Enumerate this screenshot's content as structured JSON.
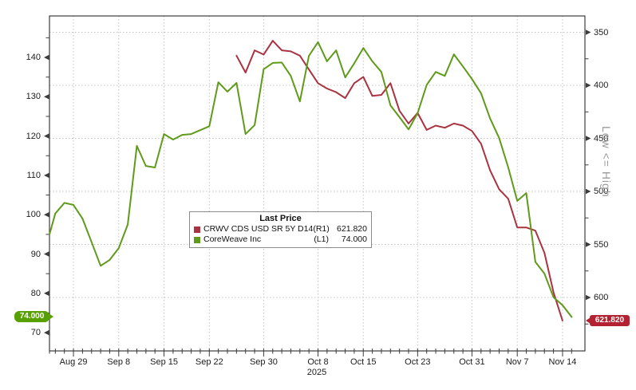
{
  "chart_data": {
    "type": "line",
    "year_label": "2025",
    "legend": {
      "title": "Last Price",
      "entries": [
        {
          "label": "CRWV CDS USD SR 5Y D14",
          "axis_tag": "(R1)",
          "value": "621.820",
          "color": "#a93340"
        },
        {
          "label": "CoreWeave Inc",
          "axis_tag": "(L1)",
          "value": "74.000",
          "color": "#5f9a1b"
        }
      ]
    },
    "x_axis": {
      "tick_labels": [
        "Aug 29",
        "Sep 8",
        "Sep 15",
        "Sep 22",
        "Sep 30",
        "Oct 8",
        "Oct 15",
        "Oct 23",
        "Oct 31",
        "Nov 7",
        "Nov 14"
      ],
      "tick_days": [
        3,
        8,
        13,
        18,
        24,
        30,
        35,
        41,
        47,
        52,
        57
      ],
      "total_days": 59
    },
    "left_axis": {
      "ticks": [
        140,
        130,
        120,
        110,
        100,
        90,
        80,
        70
      ],
      "minor_ticks": [
        145,
        135,
        125,
        115,
        105,
        95,
        85,
        75
      ],
      "badge": "74.000",
      "badge_color": "#58a000"
    },
    "right_axis": {
      "ticks": [
        350,
        400,
        450,
        500,
        550,
        600
      ],
      "minor_ticks": [
        375,
        425,
        475,
        525,
        575,
        625
      ],
      "label": "Low <= High",
      "inverted": true,
      "badge": "621.820",
      "badge_color": "#b42231"
    },
    "series": [
      {
        "name": "CoreWeave Inc (L1)",
        "axis": "left",
        "color": "#5f9a1b",
        "days": [
          0,
          1,
          2,
          3,
          4,
          5,
          6,
          7,
          8,
          9,
          10,
          11,
          12,
          13,
          14,
          15,
          16,
          17,
          18,
          19,
          20,
          21,
          22,
          23,
          24,
          25,
          26,
          27,
          28,
          29,
          30,
          31,
          32,
          33,
          34,
          35,
          36,
          37,
          38,
          39,
          40,
          41,
          42,
          43,
          44,
          45,
          46,
          47,
          48,
          49,
          50,
          51,
          52,
          53,
          54,
          55,
          56,
          57,
          58
        ],
        "values": [
          95,
          100.3,
          103,
          102.5,
          99,
          93,
          87,
          88.5,
          91.5,
          97.5,
          117.5,
          112.4,
          112,
          120.5,
          119.1,
          120.3,
          120.5,
          121.5,
          122.5,
          133.7,
          131.3,
          133.5,
          120.5,
          122.8,
          137,
          138.6,
          138.7,
          135.3,
          128.8,
          140.4,
          143.9,
          139,
          141.8,
          134.9,
          138.5,
          142.4,
          139,
          136.3,
          127.8,
          124.8,
          121.7,
          125.8,
          133,
          136.3,
          135.3,
          140.8,
          137.7,
          134.5,
          130.9,
          124.5,
          119.5,
          112,
          103.5,
          105.5,
          88,
          85,
          79,
          77,
          74
        ],
        "last_price": 74.0
      },
      {
        "name": "CRWV CDS USD SR 5Y D14 (R1)",
        "axis": "right",
        "color": "#a93340",
        "days": [
          21,
          22,
          23,
          24,
          25,
          26,
          27,
          28,
          29,
          30,
          31,
          32,
          33,
          34,
          35,
          36,
          37,
          38,
          39,
          40,
          41,
          42,
          43,
          44,
          45,
          46,
          47,
          48,
          49,
          50,
          51,
          52,
          53,
          54,
          55,
          56,
          57
        ],
        "values": [
          372,
          388,
          367,
          371,
          358,
          367,
          368,
          372,
          385,
          398,
          403,
          406.5,
          412,
          398,
          392,
          410,
          409,
          398,
          424,
          436,
          426,
          442,
          438,
          440,
          436,
          438,
          443,
          455,
          480,
          498,
          507,
          534,
          534,
          537,
          558,
          595,
          621.82
        ],
        "last_price": 621.82
      }
    ],
    "colors": {
      "grid": "#c4c4c4",
      "frame": "#3c3c3c",
      "tick_text": "#1c1c1c",
      "side_label": "#9a9a9a"
    }
  }
}
